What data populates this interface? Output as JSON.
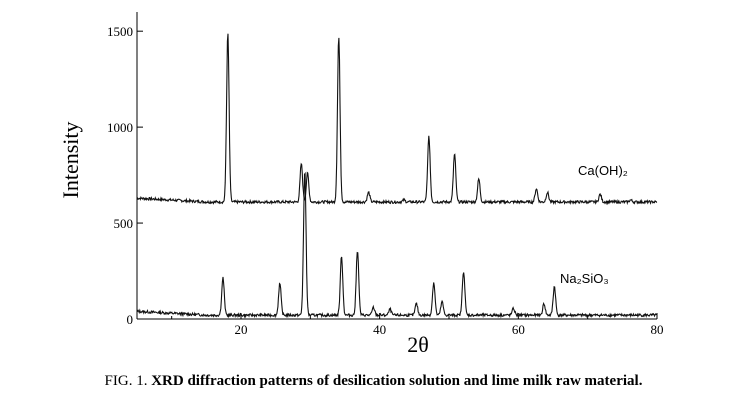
{
  "caption": {
    "prefix": "FIG. 1.",
    "text": "XRD diffraction patterns of desilication solution and lime milk raw material."
  },
  "chart_data": {
    "type": "line",
    "xlabel": "2θ",
    "ylabel": "Intensity",
    "xlim": [
      5,
      80
    ],
    "ylim": [
      0,
      1600
    ],
    "x_ticks": [
      20,
      40,
      60,
      80
    ],
    "x_tick_labels": [
      "20",
      "40",
      "60",
      "80"
    ],
    "y_ticks": [
      0,
      500,
      1000,
      1500
    ],
    "y_tick_labels": [
      "0",
      "500",
      "1000",
      "1500"
    ],
    "grid": false,
    "series": [
      {
        "name": "Ca(OH)₂",
        "baseline": 610,
        "peaks": [
          {
            "x": 18.1,
            "y": 1490
          },
          {
            "x": 28.7,
            "y": 810
          },
          {
            "x": 29.6,
            "y": 760
          },
          {
            "x": 34.1,
            "y": 1470
          },
          {
            "x": 38.4,
            "y": 660
          },
          {
            "x": 43.5,
            "y": 620
          },
          {
            "x": 47.1,
            "y": 950
          },
          {
            "x": 50.8,
            "y": 860
          },
          {
            "x": 54.3,
            "y": 730
          },
          {
            "x": 62.6,
            "y": 680
          },
          {
            "x": 64.2,
            "y": 660
          },
          {
            "x": 71.8,
            "y": 650
          },
          {
            "x": 76.2,
            "y": 620
          }
        ]
      },
      {
        "name": "Na₂SiO₃",
        "baseline": 20,
        "peaks": [
          {
            "x": 17.4,
            "y": 215
          },
          {
            "x": 25.6,
            "y": 185
          },
          {
            "x": 29.2,
            "y": 770
          },
          {
            "x": 34.5,
            "y": 330
          },
          {
            "x": 36.8,
            "y": 360
          },
          {
            "x": 39.1,
            "y": 60
          },
          {
            "x": 41.5,
            "y": 50
          },
          {
            "x": 45.3,
            "y": 80
          },
          {
            "x": 47.8,
            "y": 190
          },
          {
            "x": 49.0,
            "y": 90
          },
          {
            "x": 52.1,
            "y": 250
          },
          {
            "x": 59.3,
            "y": 55
          },
          {
            "x": 63.7,
            "y": 80
          },
          {
            "x": 65.2,
            "y": 170
          }
        ]
      }
    ]
  }
}
